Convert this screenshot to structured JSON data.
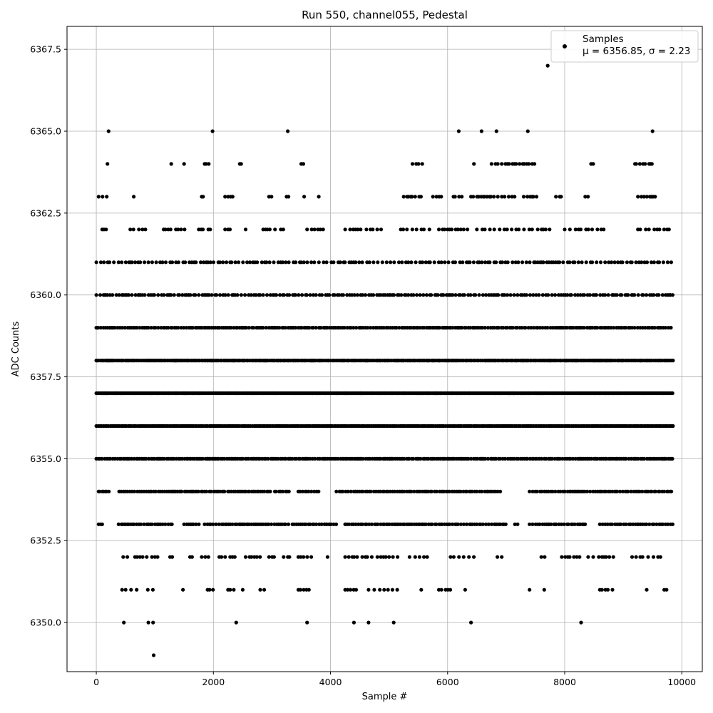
{
  "chart_data": {
    "type": "scatter",
    "title": "Run 550, channel055, Pedestal",
    "xlabel": "Sample #",
    "ylabel": "ADC Counts",
    "xlim": [
      -500,
      10350
    ],
    "ylim": [
      6348.5,
      6368.2
    ],
    "xticks": [
      0,
      2000,
      4000,
      6000,
      8000,
      10000
    ],
    "xtick_labels": [
      "0",
      "2000",
      "4000",
      "6000",
      "8000",
      "10000"
    ],
    "yticks": [
      6350.0,
      6352.5,
      6355.0,
      6357.5,
      6360.0,
      6362.5,
      6365.0,
      6367.5
    ],
    "ytick_labels": [
      "6350.0",
      "6352.5",
      "6355.0",
      "6357.5",
      "6360.0",
      "6362.5",
      "6365.0",
      "6367.5"
    ],
    "grid": true,
    "legend_position": "top-right",
    "marker_color": "#000000",
    "series": [
      {
        "name": "Samples",
        "stats_label": "μ = 6356.85, σ = 2.23",
        "mean": 6356.85,
        "sigma": 2.23,
        "sample_range": [
          0,
          9850
        ],
        "dense_levels": [
          6355,
          6356,
          6357,
          6358,
          6359,
          6360,
          6361
        ],
        "sparse_levels": [
          {
            "y": 6353,
            "ranges": [
              [
                40,
                110
              ],
              [
                380,
                1300
              ],
              [
                1500,
                1800
              ],
              [
                1850,
                2500
              ],
              [
                2450,
                3300
              ],
              [
                3350,
                4100
              ],
              [
                3900,
                4000
              ],
              [
                4250,
                5300
              ],
              [
                5300,
                7000
              ],
              [
                7150,
                7200
              ],
              [
                7400,
                8350
              ],
              [
                8600,
                9850
              ]
            ]
          },
          {
            "y": 6354,
            "ranges": [
              [
                40,
                230
              ],
              [
                390,
                1400
              ],
              [
                1300,
                2200
              ],
              [
                2250,
                3000
              ],
              [
                3050,
                3300
              ],
              [
                3450,
                3800
              ],
              [
                4100,
                4300
              ],
              [
                4300,
                6900
              ],
              [
                7400,
                8000
              ],
              [
                8000,
                8700
              ],
              [
                8700,
                9850
              ]
            ]
          },
          {
            "y": 6362,
            "ranges": [
              [
                100,
                230
              ],
              [
                580,
                860
              ],
              [
                1150,
                1550
              ],
              [
                1750,
                2000
              ],
              [
                2200,
                2300
              ],
              [
                2550,
                2600
              ],
              [
                2850,
                3200
              ],
              [
                3600,
                3950
              ],
              [
                4250,
                4900
              ],
              [
                5200,
                5750
              ],
              [
                5850,
                6400
              ],
              [
                6500,
                7800
              ],
              [
                8000,
                8700
              ],
              [
                9250,
                9800
              ]
            ]
          },
          {
            "y": 6352,
            "ranges": [
              [
                460,
                560
              ],
              [
                660,
                1050
              ],
              [
                1260,
                1350
              ],
              [
                1600,
                1650
              ],
              [
                1800,
                1950
              ],
              [
                2100,
                2450
              ],
              [
                2550,
                2800
              ],
              [
                2950,
                3050
              ],
              [
                3200,
                3300
              ],
              [
                3450,
                3700
              ],
              [
                3950,
                4000
              ],
              [
                4250,
                5150
              ],
              [
                5350,
                5700
              ],
              [
                6050,
                6450
              ],
              [
                6850,
                6950
              ],
              [
                7600,
                7700
              ],
              [
                7950,
                8300
              ],
              [
                8400,
                8900
              ],
              [
                9150,
                9650
              ]
            ]
          },
          {
            "y": 6363,
            "ranges": [
              [
                40,
                200
              ],
              [
                620,
                660
              ],
              [
                1800,
                1850
              ],
              [
                2200,
                2350
              ],
              [
                2950,
                3050
              ],
              [
                3250,
                3300
              ],
              [
                3550,
                3600
              ],
              [
                3800,
                3850
              ],
              [
                5250,
                5550
              ],
              [
                5750,
                5950
              ],
              [
                6100,
                6250
              ],
              [
                6400,
                7150
              ],
              [
                7300,
                7550
              ],
              [
                7850,
                7950
              ],
              [
                8350,
                8400
              ],
              [
                9250,
                9600
              ]
            ]
          },
          {
            "y": 6364,
            "ranges": [
              [
                190,
                240
              ],
              [
                1260,
                1300
              ],
              [
                1500,
                1550
              ],
              [
                1850,
                1950
              ],
              [
                2450,
                2500
              ],
              [
                3500,
                3550
              ],
              [
                5400,
                5600
              ],
              [
                6450,
                6500
              ],
              [
                6750,
                7500
              ],
              [
                8450,
                8500
              ],
              [
                9200,
                9500
              ]
            ]
          },
          {
            "y": 6351,
            "ranges": [
              [
                440,
                700
              ],
              [
                880,
                1000
              ],
              [
                1480,
                1550
              ],
              [
                1900,
                2000
              ],
              [
                2250,
                2350
              ],
              [
                2500,
                2550
              ],
              [
                2800,
                2950
              ],
              [
                3450,
                3700
              ],
              [
                4250,
                4450
              ],
              [
                4650,
                5200
              ],
              [
                5550,
                5600
              ],
              [
                5850,
                6050
              ],
              [
                6300,
                6350
              ],
              [
                7400,
                7450
              ],
              [
                7650,
                7700
              ],
              [
                8600,
                8850
              ],
              [
                9400,
                9450
              ],
              [
                9700,
                9750
              ]
            ]
          },
          {
            "y": 6365,
            "ranges": [
              [
                200,
                220
              ],
              [
                1970,
                2000
              ],
              [
                3260,
                3280
              ],
              [
                6180,
                6200
              ],
              [
                6580,
                6650
              ],
              [
                6820,
                6850
              ],
              [
                7360,
                7380
              ],
              [
                9480,
                9520
              ]
            ]
          },
          {
            "y": 6350,
            "ranges": [
              [
                460,
                480
              ],
              [
                880,
                900
              ],
              [
                960,
                980
              ],
              [
                2380,
                2400
              ],
              [
                3590,
                3610
              ],
              [
                4390,
                4410
              ],
              [
                4640,
                4660
              ],
              [
                5070,
                5090
              ],
              [
                6390,
                6410
              ],
              [
                8270,
                8290
              ]
            ]
          }
        ],
        "outliers": [
          {
            "x": 980,
            "y": 6349
          },
          {
            "x": 7710,
            "y": 6367
          }
        ]
      }
    ]
  }
}
